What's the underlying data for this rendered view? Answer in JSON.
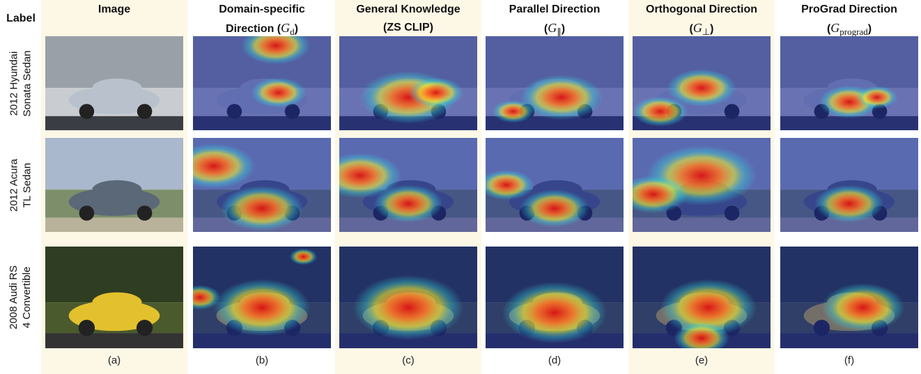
{
  "header": {
    "label": "Label"
  },
  "columns": [
    {
      "title": [
        "Image"
      ],
      "caption": "(a)"
    },
    {
      "title": [
        "Domain-specific",
        "Direction ("
      ],
      "symbol": "G",
      "subscript": "d",
      "close": ")",
      "caption": "(b)"
    },
    {
      "title": [
        "General Knowledge",
        "(ZS CLIP)"
      ],
      "caption": "(c)"
    },
    {
      "title": [
        "Parallel Direction",
        "("
      ],
      "symbol": "G",
      "subscript": "∥",
      "close": ")",
      "caption": "(d)"
    },
    {
      "title": [
        "Orthogonal Direction",
        "("
      ],
      "symbol": "G",
      "subscript": "⊥",
      "close": ")",
      "caption": "(e)"
    },
    {
      "title": [
        "ProGrad Direction",
        "("
      ],
      "symbol": "G",
      "subscript": "prograd",
      "close": ")",
      "caption": "(f)"
    }
  ],
  "rows": [
    {
      "label": [
        "2012 Hyundai",
        "Sonata Sedan"
      ]
    },
    {
      "label": [
        "2012 Acura",
        "TL Sedan"
      ]
    },
    {
      "label": [
        "2008 Audi RS",
        "4 Convertible"
      ]
    }
  ]
}
